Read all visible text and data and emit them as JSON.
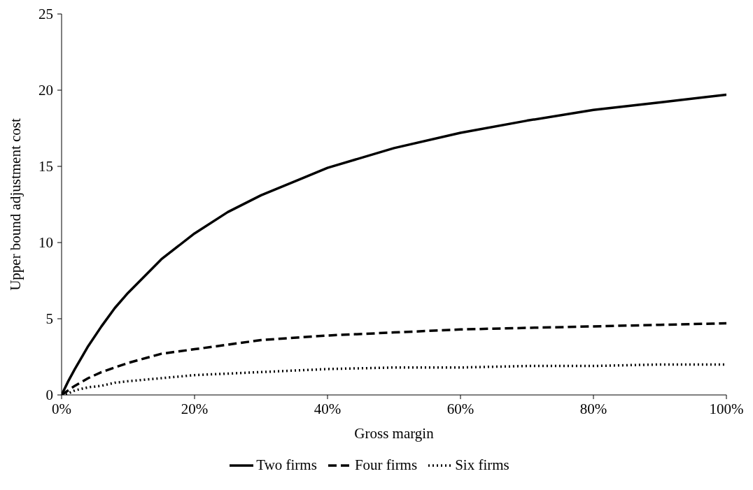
{
  "chart_data": {
    "type": "line",
    "xlabel": "Gross margin",
    "ylabel": "Upper bound adjustment cost",
    "x": [
      0,
      1,
      2,
      4,
      6,
      8,
      10,
      15,
      20,
      25,
      30,
      40,
      50,
      60,
      70,
      80,
      90,
      100
    ],
    "xlim": [
      0,
      100
    ],
    "xticks": [
      {
        "value": 0,
        "label": "0%"
      },
      {
        "value": 20,
        "label": "20%"
      },
      {
        "value": 40,
        "label": "40%"
      },
      {
        "value": 60,
        "label": "60%"
      },
      {
        "value": 80,
        "label": "80%"
      },
      {
        "value": 100,
        "label": "100%"
      }
    ],
    "ylim": [
      0,
      25
    ],
    "yticks": [
      0,
      5,
      10,
      15,
      20,
      25
    ],
    "grid": false,
    "legend": "bottom",
    "marker": "none",
    "series": [
      {
        "name": "Two firms",
        "color": "#000000",
        "line_style": "solid",
        "values": [
          0,
          0.9,
          1.7,
          3.2,
          4.5,
          5.7,
          6.7,
          8.9,
          10.6,
          12.0,
          13.1,
          14.9,
          16.2,
          17.2,
          18.0,
          18.7,
          19.2,
          19.7
        ]
      },
      {
        "name": "Four firms",
        "color": "#000000",
        "line_style": "dashed",
        "values": [
          0,
          0.3,
          0.6,
          1.1,
          1.5,
          1.8,
          2.1,
          2.7,
          3.0,
          3.3,
          3.6,
          3.9,
          4.1,
          4.3,
          4.4,
          4.5,
          4.6,
          4.7
        ]
      },
      {
        "name": "Six firms",
        "color": "#000000",
        "line_style": "dotted",
        "values": [
          0,
          0.1,
          0.3,
          0.5,
          0.6,
          0.8,
          0.9,
          1.1,
          1.3,
          1.4,
          1.5,
          1.7,
          1.8,
          1.8,
          1.9,
          1.9,
          2.0,
          2.0
        ]
      }
    ]
  }
}
